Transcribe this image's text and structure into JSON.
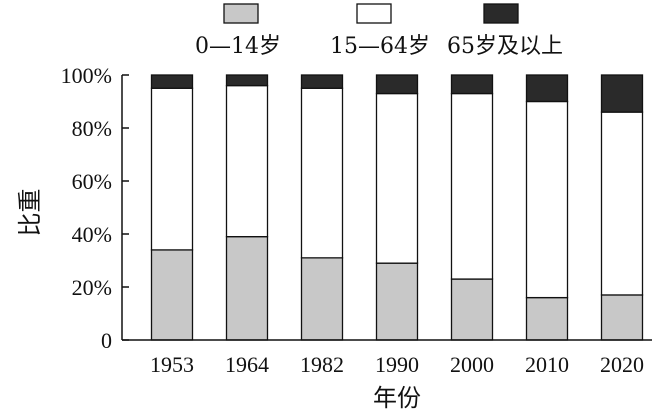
{
  "chart_data": {
    "type": "bar",
    "stacked": true,
    "categories": [
      "1953",
      "1964",
      "1982",
      "1990",
      "2000",
      "2010",
      "2020"
    ],
    "series": [
      {
        "name": "0—14岁",
        "color": "#c8c8c8",
        "values": [
          34,
          39,
          31,
          29,
          23,
          16,
          17
        ]
      },
      {
        "name": "15—64岁",
        "color": "#ffffff",
        "values": [
          61,
          57,
          64,
          64,
          70,
          74,
          69
        ]
      },
      {
        "name": "65岁及以上",
        "color": "#2a2a2a",
        "values": [
          5,
          4,
          5,
          7,
          7,
          10,
          14
        ]
      }
    ],
    "xlabel": "年份",
    "ylabel": "比重",
    "ylim": [
      0,
      100
    ],
    "yticks": [
      "0",
      "20%",
      "40%",
      "60%",
      "80%",
      "100%"
    ],
    "ytick_values": [
      0,
      20,
      40,
      60,
      80,
      100
    ],
    "legend_position": "top",
    "grid": false
  }
}
